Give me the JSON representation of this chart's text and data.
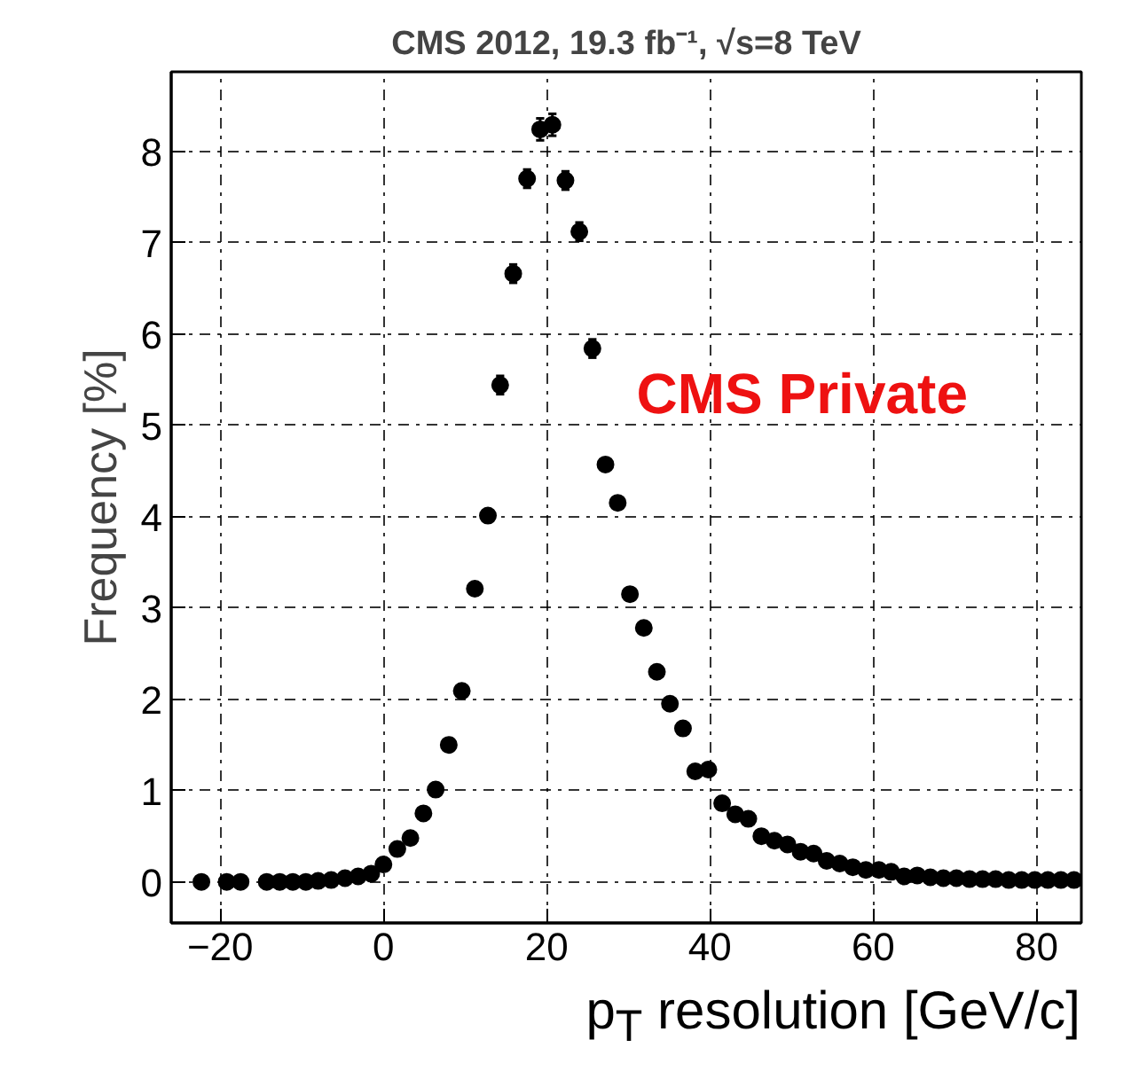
{
  "chart_data": {
    "type": "scatter",
    "title": "CMS 2012, 19.3 fb⁻¹, √s=8 TeV",
    "xlabel": "p$_{T}$ resolution [GeV/c]",
    "ylabel": "Frequency [%]",
    "annotations": [
      "CMS Private"
    ],
    "x": [
      -22.3,
      -19.2,
      -17.5,
      -14.3,
      -12.7,
      -11.1,
      -9.5,
      -8.0,
      -6.4,
      -4.7,
      -3.1,
      -1.5,
      0.0,
      1.7,
      3.3,
      4.9,
      6.4,
      8.0,
      9.6,
      11.2,
      12.8,
      14.3,
      15.9,
      17.6,
      19.2,
      20.7,
      22.3,
      24.0,
      25.6,
      27.2,
      28.7,
      30.2,
      31.9,
      33.5,
      35.1,
      36.7,
      38.2,
      39.8,
      41.5,
      43.1,
      44.7,
      46.3,
      47.9,
      49.5,
      51.1,
      52.7,
      54.3,
      55.9,
      57.5,
      59.1,
      60.7,
      62.2,
      63.8,
      65.4,
      67.0,
      68.6,
      70.2,
      71.8,
      73.4,
      75.0,
      76.6,
      78.2,
      79.8,
      81.4,
      83.0,
      84.6
    ],
    "series": [
      {
        "color": "#000000",
        "values": [
          0.0,
          0.0,
          0.0,
          0.0,
          0.0,
          0.0,
          0.0,
          0.01,
          0.02,
          0.04,
          0.06,
          0.09,
          0.19,
          0.36,
          0.48,
          0.75,
          1.01,
          1.5,
          2.09,
          3.21,
          4.01,
          5.44,
          6.66,
          7.7,
          8.24,
          8.29,
          7.68,
          7.12,
          5.84,
          4.57,
          4.15,
          3.15,
          2.78,
          2.3,
          1.95,
          1.68,
          1.21,
          1.23,
          0.86,
          0.74,
          0.69,
          0.5,
          0.45,
          0.41,
          0.33,
          0.31,
          0.23,
          0.2,
          0.16,
          0.13,
          0.13,
          0.11,
          0.06,
          0.07,
          0.05,
          0.04,
          0.04,
          0.03,
          0.03,
          0.03,
          0.02,
          0.02,
          0.02,
          0.02,
          0.02,
          0.02
        ],
        "errors": [
          null,
          null,
          null,
          null,
          null,
          null,
          null,
          null,
          null,
          null,
          null,
          null,
          null,
          null,
          null,
          null,
          null,
          null,
          null,
          null,
          0.05,
          0.1,
          0.1,
          0.1,
          0.12,
          0.12,
          0.1,
          0.1,
          0.1,
          0.05,
          0.05,
          null,
          null,
          null,
          null,
          null,
          null,
          null,
          null,
          null,
          null,
          null,
          null,
          null,
          null,
          null,
          null,
          null,
          null,
          null,
          null,
          null,
          null,
          null,
          null,
          null,
          null,
          null,
          null,
          null,
          null,
          null,
          null,
          null,
          null,
          null
        ]
      }
    ],
    "xlim": [
      -26,
      85.5
    ],
    "ylim": [
      -0.45,
      8.87
    ],
    "xticks": [
      -20,
      0,
      20,
      40,
      60,
      80
    ],
    "yticks": [
      0,
      1,
      2,
      3,
      4,
      5,
      6,
      7,
      8
    ],
    "grid": true,
    "marker": "circle"
  }
}
